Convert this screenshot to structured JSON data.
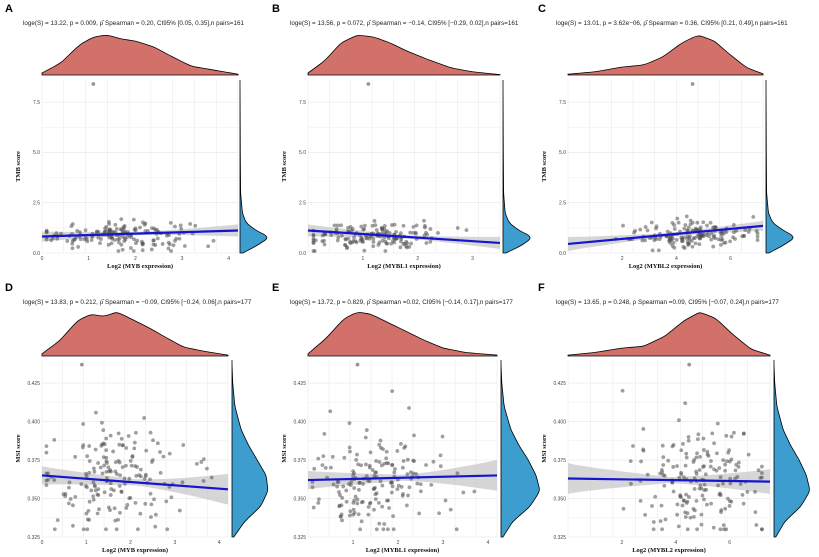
{
  "figure": {
    "colors": {
      "x_density": "#d2706a",
      "y_density": "#3d9dcf",
      "points": "#505050",
      "regression_line": "#1515d0",
      "ci_band": "#c8c8c8",
      "grid": "#e6e6e6"
    }
  },
  "chart_data": [
    {
      "type": "scatter",
      "panel": "A",
      "subtitle": "loge(S) = 13.22, p = 0.009, ρ̂ Spearman = 0.20, CI95% [0.05, 0.35],n pairs=161",
      "xlabel": "Log2 (MYB expression)",
      "ylabel": "TMB score",
      "xlim": [
        0,
        4.2
      ],
      "ylim": [
        0,
        8.6
      ],
      "x_ticks": [
        "0",
        "1",
        "2",
        "3",
        "4"
      ],
      "x_tick_values": [
        0,
        1,
        2,
        3,
        4
      ],
      "y_ticks": [
        "0.0",
        "2.5",
        "5.0",
        "7.5"
      ],
      "y_tick_values": [
        0,
        2.5,
        5,
        7.5
      ],
      "n_points": 161,
      "x_range": [
        0.1,
        4.0
      ],
      "y_range": [
        0.1,
        2.1
      ],
      "x_center": 1.6,
      "x_spread": 0.8,
      "y_center": 0.9,
      "y_spread": 0.35,
      "outliers": [
        [
          1.1,
          8.4
        ]
      ],
      "fit": {
        "x": [
          0,
          4.2
        ],
        "y": [
          0.82,
          1.12
        ]
      },
      "ci_halfwidth": [
        0.25,
        0.08,
        0.3
      ],
      "x_density": [
        [
          0,
          0.05
        ],
        [
          0.4,
          0.3
        ],
        [
          0.8,
          0.75
        ],
        [
          1.1,
          0.95
        ],
        [
          1.4,
          1.0
        ],
        [
          1.7,
          0.9
        ],
        [
          2.0,
          0.85
        ],
        [
          2.4,
          0.7
        ],
        [
          2.8,
          0.45
        ],
        [
          3.2,
          0.22
        ],
        [
          3.7,
          0.12
        ],
        [
          4.2,
          0.02
        ]
      ],
      "y_density": [
        [
          0,
          0.1
        ],
        [
          0.4,
          0.6
        ],
        [
          0.8,
          1.0
        ],
        [
          1.1,
          0.55
        ],
        [
          1.5,
          0.2
        ],
        [
          2.0,
          0.08
        ],
        [
          3.0,
          0.02
        ],
        [
          5.0,
          0.01
        ],
        [
          8.4,
          0.0
        ]
      ]
    },
    {
      "type": "scatter",
      "panel": "B",
      "subtitle": "loge(S) = 13.56, p = 0.072, ρ̂ Spearman = −0.14, CI95% [−0.29, 0.02],n pairs=161",
      "xlabel": "Log2 (MYBL1 expression)",
      "ylabel": "TMB score",
      "xlim": [
        0,
        3.5
      ],
      "ylim": [
        0,
        8.6
      ],
      "x_ticks": [
        "1",
        "2",
        "3"
      ],
      "x_tick_values": [
        1,
        2,
        3
      ],
      "y_ticks": [
        "0.0",
        "2.5",
        "5.0",
        "7.5"
      ],
      "y_tick_values": [
        0,
        2.5,
        5,
        7.5
      ],
      "n_points": 161,
      "x_range": [
        0.1,
        3.3
      ],
      "y_range": [
        0.1,
        2.1
      ],
      "x_center": 1.2,
      "x_spread": 0.6,
      "y_center": 0.85,
      "y_spread": 0.35,
      "outliers": [
        [
          1.1,
          8.4
        ]
      ],
      "fit": {
        "x": [
          0,
          3.5
        ],
        "y": [
          1.12,
          0.5
        ]
      },
      "ci_halfwidth": [
        0.3,
        0.08,
        0.3
      ],
      "x_density": [
        [
          0,
          0.05
        ],
        [
          0.3,
          0.35
        ],
        [
          0.6,
          0.8
        ],
        [
          0.9,
          1.0
        ],
        [
          1.2,
          0.95
        ],
        [
          1.5,
          0.8
        ],
        [
          1.8,
          0.6
        ],
        [
          2.2,
          0.38
        ],
        [
          2.6,
          0.18
        ],
        [
          3.0,
          0.08
        ],
        [
          3.5,
          0.01
        ]
      ],
      "y_density": [
        [
          0,
          0.1
        ],
        [
          0.4,
          0.65
        ],
        [
          0.8,
          1.0
        ],
        [
          1.1,
          0.55
        ],
        [
          1.5,
          0.2
        ],
        [
          2.0,
          0.07
        ],
        [
          3.0,
          0.02
        ],
        [
          5.0,
          0.01
        ],
        [
          8.4,
          0.0
        ]
      ]
    },
    {
      "type": "scatter",
      "panel": "C",
      "subtitle": "loge(S) = 13.01, p = 3.62e−06, ρ̂ Spearman = 0.36, CI95% [0.21, 0.49],n pairs=161",
      "xlabel": "Log2 (MYBL2 expression)",
      "ylabel": "TMB score",
      "xlim": [
        0,
        7.2
      ],
      "ylim": [
        0,
        8.6
      ],
      "x_ticks": [
        "2",
        "4",
        "6"
      ],
      "x_tick_values": [
        2,
        4,
        6
      ],
      "y_ticks": [
        "0.0",
        "2.5",
        "5.0",
        "7.5"
      ],
      "y_tick_values": [
        0,
        2.5,
        5,
        7.5
      ],
      "n_points": 161,
      "x_range": [
        0.5,
        7.0
      ],
      "y_range": [
        0.1,
        2.1
      ],
      "x_center": 4.6,
      "x_spread": 1.2,
      "y_center": 0.9,
      "y_spread": 0.35,
      "outliers": [
        [
          4.6,
          8.4
        ]
      ],
      "fit": {
        "x": [
          0,
          7.2
        ],
        "y": [
          0.45,
          1.35
        ]
      },
      "ci_halfwidth": [
        0.35,
        0.08,
        0.25
      ],
      "x_density": [
        [
          0,
          0.02
        ],
        [
          1.0,
          0.08
        ],
        [
          2.0,
          0.2
        ],
        [
          2.8,
          0.25
        ],
        [
          3.5,
          0.45
        ],
        [
          4.2,
          0.8
        ],
        [
          4.8,
          1.0
        ],
        [
          5.4,
          0.85
        ],
        [
          6.0,
          0.5
        ],
        [
          6.6,
          0.18
        ],
        [
          7.2,
          0.03
        ]
      ],
      "y_density": [
        [
          0,
          0.1
        ],
        [
          0.4,
          0.6
        ],
        [
          0.8,
          1.0
        ],
        [
          1.1,
          0.6
        ],
        [
          1.5,
          0.22
        ],
        [
          2.0,
          0.08
        ],
        [
          3.0,
          0.02
        ],
        [
          5.0,
          0.01
        ],
        [
          8.4,
          0.0
        ]
      ]
    },
    {
      "type": "scatter",
      "panel": "D",
      "subtitle": "loge(S) = 13.83, p = 0.212, ρ̂ Spearman = −0.09, CI95% [−0.24, 0.06],n pairs=177",
      "xlabel": "Log2 (MYB expression)",
      "ylabel": "MSI score",
      "xlim": [
        0,
        4.2
      ],
      "ylim": [
        0.325,
        0.44
      ],
      "x_ticks": [
        "0",
        "1",
        "2",
        "3",
        "4"
      ],
      "x_tick_values": [
        0,
        1,
        2,
        3,
        4
      ],
      "y_ticks": [
        "0.325",
        "0.350",
        "0.375",
        "0.400",
        "0.425"
      ],
      "y_tick_values": [
        0.325,
        0.35,
        0.375,
        0.4,
        0.425
      ],
      "n_points": 177,
      "x_range": [
        0.1,
        4.0
      ],
      "y_range": [
        0.33,
        0.42
      ],
      "x_center": 1.6,
      "x_spread": 0.8,
      "y_center": 0.362,
      "y_spread": 0.018,
      "outliers": [
        [
          0.9,
          0.437
        ]
      ],
      "fit": {
        "x": [
          0,
          4.2
        ],
        "y": [
          0.365,
          0.356
        ]
      },
      "ci_halfwidth": [
        0.006,
        0.002,
        0.01
      ],
      "x_density": [
        [
          0,
          0.05
        ],
        [
          0.4,
          0.35
        ],
        [
          0.8,
          0.8
        ],
        [
          1.1,
          0.95
        ],
        [
          1.4,
          0.9
        ],
        [
          1.7,
          1.0
        ],
        [
          2.0,
          0.85
        ],
        [
          2.4,
          0.65
        ],
        [
          2.8,
          0.42
        ],
        [
          3.2,
          0.2
        ],
        [
          3.7,
          0.1
        ],
        [
          4.2,
          0.02
        ]
      ],
      "y_density": [
        [
          0.325,
          0.05
        ],
        [
          0.335,
          0.35
        ],
        [
          0.345,
          0.8
        ],
        [
          0.355,
          1.0
        ],
        [
          0.365,
          0.95
        ],
        [
          0.375,
          0.7
        ],
        [
          0.385,
          0.45
        ],
        [
          0.395,
          0.25
        ],
        [
          0.41,
          0.08
        ],
        [
          0.425,
          0.02
        ],
        [
          0.437,
          0.0
        ]
      ]
    },
    {
      "type": "scatter",
      "panel": "E",
      "subtitle": "loge(S) = 13.72, p = 0.829, ρ̂ Spearman =0.02, CI95% [−0.14, 0.17],n pairs=177",
      "xlabel": "Log2 (MYBL1 expression)",
      "ylabel": "MSI score",
      "xlim": [
        0,
        4.2
      ],
      "ylim": [
        0.325,
        0.44
      ],
      "x_ticks": [
        "1",
        "2",
        "3",
        "4"
      ],
      "x_tick_values": [
        1,
        2,
        3,
        4
      ],
      "y_ticks": [
        "0.325",
        "0.350",
        "0.375",
        "0.400",
        "0.425"
      ],
      "y_tick_values": [
        0.325,
        0.35,
        0.375,
        0.4,
        0.425
      ],
      "n_points": 177,
      "x_range": [
        0.1,
        4.0
      ],
      "y_range": [
        0.33,
        0.42
      ],
      "x_center": 1.5,
      "x_spread": 0.75,
      "y_center": 0.362,
      "y_spread": 0.018,
      "outliers": [
        [
          1.1,
          0.437
        ]
      ],
      "fit": {
        "x": [
          0,
          4.2
        ],
        "y": [
          0.362,
          0.365
        ]
      },
      "ci_halfwidth": [
        0.006,
        0.002,
        0.01
      ],
      "x_density": [
        [
          0,
          0.05
        ],
        [
          0.4,
          0.4
        ],
        [
          0.8,
          0.85
        ],
        [
          1.1,
          1.0
        ],
        [
          1.4,
          0.95
        ],
        [
          1.8,
          0.75
        ],
        [
          2.2,
          0.55
        ],
        [
          2.6,
          0.35
        ],
        [
          3.0,
          0.18
        ],
        [
          3.5,
          0.08
        ],
        [
          4.2,
          0.02
        ]
      ],
      "y_density": [
        [
          0.325,
          0.05
        ],
        [
          0.335,
          0.3
        ],
        [
          0.345,
          0.75
        ],
        [
          0.355,
          1.0
        ],
        [
          0.365,
          0.9
        ],
        [
          0.375,
          0.7
        ],
        [
          0.385,
          0.45
        ],
        [
          0.395,
          0.25
        ],
        [
          0.41,
          0.08
        ],
        [
          0.425,
          0.02
        ],
        [
          0.437,
          0.0
        ]
      ]
    },
    {
      "type": "scatter",
      "panel": "F",
      "subtitle": "loge(S) = 13.65, p = 0.248, ρ Spearman =0.09, CI95% [−0.07, 0.24],n pairs=177",
      "xlabel": "Log2 (MYBL2 expression)",
      "ylabel": "MSI score",
      "xlim": [
        0,
        7.5
      ],
      "ylim": [
        0.325,
        0.44
      ],
      "x_ticks": [
        "2",
        "4",
        "6"
      ],
      "x_tick_values": [
        2,
        4,
        6
      ],
      "y_ticks": [
        "0.325",
        "0.350",
        "0.375",
        "0.400",
        "0.425"
      ],
      "y_tick_values": [
        0.325,
        0.35,
        0.375,
        0.4,
        0.425
      ],
      "n_points": 177,
      "x_range": [
        0.5,
        7.2
      ],
      "y_range": [
        0.33,
        0.42
      ],
      "x_center": 4.7,
      "x_spread": 1.2,
      "y_center": 0.362,
      "y_spread": 0.018,
      "outliers": [
        [
          4.5,
          0.437
        ]
      ],
      "fit": {
        "x": [
          0,
          7.5
        ],
        "y": [
          0.363,
          0.361
        ]
      },
      "ci_halfwidth": [
        0.01,
        0.002,
        0.008
      ],
      "x_density": [
        [
          0,
          0.02
        ],
        [
          1.0,
          0.08
        ],
        [
          2.0,
          0.18
        ],
        [
          2.8,
          0.22
        ],
        [
          3.6,
          0.45
        ],
        [
          4.3,
          0.8
        ],
        [
          4.9,
          1.0
        ],
        [
          5.5,
          0.85
        ],
        [
          6.1,
          0.5
        ],
        [
          6.8,
          0.15
        ],
        [
          7.5,
          0.02
        ]
      ],
      "y_density": [
        [
          0.325,
          0.05
        ],
        [
          0.335,
          0.3
        ],
        [
          0.345,
          0.75
        ],
        [
          0.355,
          1.0
        ],
        [
          0.365,
          0.9
        ],
        [
          0.375,
          0.7
        ],
        [
          0.385,
          0.45
        ],
        [
          0.395,
          0.25
        ],
        [
          0.41,
          0.08
        ],
        [
          0.425,
          0.02
        ],
        [
          0.437,
          0.0
        ]
      ]
    }
  ]
}
